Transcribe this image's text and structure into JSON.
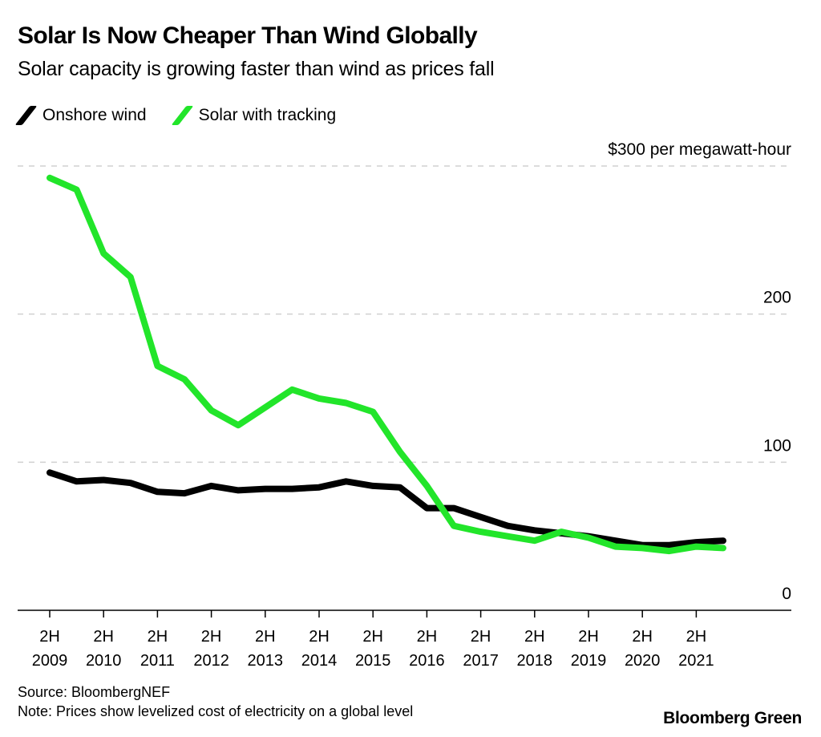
{
  "header": {
    "title": "Solar Is Now Cheaper Than Wind Globally",
    "subtitle": "Solar capacity is growing faster than wind as prices fall"
  },
  "legend": [
    {
      "label": "Onshore wind",
      "color": "#000000"
    },
    {
      "label": "Solar with tracking",
      "color": "#22e52a"
    }
  ],
  "footer": {
    "source": "Source: BloombergNEF",
    "note": "Note: Prices show levelized cost of electricity on a global level",
    "brand": "Bloomberg Green"
  },
  "chart_data": {
    "type": "line",
    "title": "Solar Is Now Cheaper Than Wind Globally",
    "subtitle": "Solar capacity is growing faster than wind as prices fall",
    "xlabel": "",
    "ylabel": "$ per megawatt-hour",
    "ylim": [
      0,
      300
    ],
    "y_ticks": [
      {
        "value": 0,
        "label": "0"
      },
      {
        "value": 100,
        "label": "100"
      },
      {
        "value": 200,
        "label": "200"
      },
      {
        "value": 300,
        "label": "$300 per megawatt-hour"
      }
    ],
    "x_ticks": [
      {
        "index": 0,
        "line1": "2H",
        "line2": "2009"
      },
      {
        "index": 2,
        "line1": "2H",
        "line2": "2010"
      },
      {
        "index": 4,
        "line1": "2H",
        "line2": "2011"
      },
      {
        "index": 6,
        "line1": "2H",
        "line2": "2012"
      },
      {
        "index": 8,
        "line1": "2H",
        "line2": "2013"
      },
      {
        "index": 10,
        "line1": "2H",
        "line2": "2014"
      },
      {
        "index": 12,
        "line1": "2H",
        "line2": "2015"
      },
      {
        "index": 14,
        "line1": "2H",
        "line2": "2016"
      },
      {
        "index": 16,
        "line1": "2H",
        "line2": "2017"
      },
      {
        "index": 18,
        "line1": "2H",
        "line2": "2018"
      },
      {
        "index": 20,
        "line1": "2H",
        "line2": "2019"
      },
      {
        "index": 22,
        "line1": "2H",
        "line2": "2020"
      },
      {
        "index": 24,
        "line1": "2H",
        "line2": "2021"
      }
    ],
    "x": [
      "2H 2009",
      "1H 2010",
      "2H 2010",
      "1H 2011",
      "2H 2011",
      "1H 2012",
      "2H 2012",
      "1H 2013",
      "2H 2013",
      "1H 2014",
      "2H 2014",
      "1H 2015",
      "2H 2015",
      "1H 2016",
      "2H 2016",
      "1H 2017",
      "2H 2017",
      "1H 2018",
      "2H 2018",
      "1H 2019",
      "2H 2019",
      "1H 2020",
      "2H 2020",
      "1H 2021",
      "2H 2021",
      "1H 2022"
    ],
    "grid": "horizontal-dashed",
    "legend_position": "top-left",
    "series": [
      {
        "name": "Onshore wind",
        "color": "#000000",
        "values": [
          93,
          87,
          88,
          86,
          80,
          79,
          84,
          81,
          82,
          82,
          83,
          87,
          84,
          83,
          69,
          69,
          63,
          57,
          54,
          52,
          50,
          47,
          44,
          44,
          46,
          47
        ]
      },
      {
        "name": "Solar with tracking",
        "color": "#22e52a",
        "values": [
          292,
          284,
          241,
          225,
          165,
          156,
          135,
          125,
          137,
          149,
          143,
          140,
          134,
          107,
          84,
          57,
          53,
          50,
          47,
          53,
          49,
          43,
          42,
          40,
          43,
          42
        ]
      }
    ]
  }
}
